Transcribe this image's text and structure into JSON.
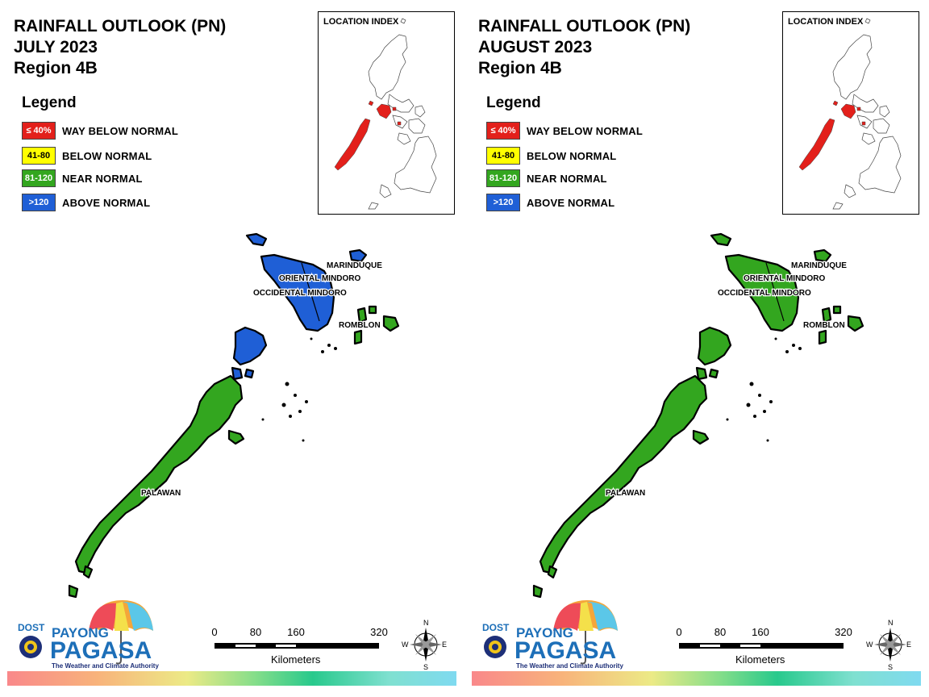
{
  "panels": [
    {
      "title_line1": "RAINFALL OUTLOOK (PN)",
      "title_line2": "JULY 2023",
      "title_line3": "Region 4B",
      "mindoro_color": "#1f5fd6",
      "marinduque_color": "#1f5fd6",
      "romblon_color": "#33a61f",
      "busuanga_color": "#1f5fd6"
    },
    {
      "title_line1": "RAINFALL OUTLOOK (PN)",
      "title_line2": "AUGUST 2023",
      "title_line3": "Region 4B",
      "mindoro_color": "#33a61f",
      "marinduque_color": "#33a61f",
      "romblon_color": "#33a61f",
      "busuanga_color": "#33a61f"
    }
  ],
  "legend": {
    "title": "Legend",
    "items": [
      {
        "range": "≤ 40%",
        "label": "WAY BELOW NORMAL",
        "color": "#e3201b",
        "text_color": "#ffffff"
      },
      {
        "range": "41-80",
        "label": "BELOW NORMAL",
        "color": "#ffff00",
        "text_color": "#000000"
      },
      {
        "range": "81-120",
        "label": "NEAR NORMAL",
        "color": "#33a61f",
        "text_color": "#ffffff"
      },
      {
        "range": ">120",
        "label": "ABOVE NORMAL",
        "color": "#1f5fd6",
        "text_color": "#ffffff"
      }
    ]
  },
  "location_index": {
    "label": "LOCATION INDEX",
    "highlight_color": "#e3201b"
  },
  "provinces": {
    "marinduque": "MARINDUQUE",
    "oriental_mindoro": "ORIENTAL MINDORO",
    "occidental_mindoro": "OCCIDENTAL MINDORO",
    "romblon": "ROMBLON",
    "palawan": "PALAWAN"
  },
  "palawan_color": "#33a61f",
  "scale": {
    "ticks": [
      "0",
      "80",
      "160",
      "320"
    ],
    "unit": "Kilometers"
  },
  "compass": {
    "n": "N",
    "s": "S",
    "e": "E",
    "w": "W"
  },
  "logo": {
    "dost": "DOST",
    "payong": "PAYONG",
    "pagasa": "PAGASA",
    "tagline": "The Weather and Climate Authority"
  }
}
